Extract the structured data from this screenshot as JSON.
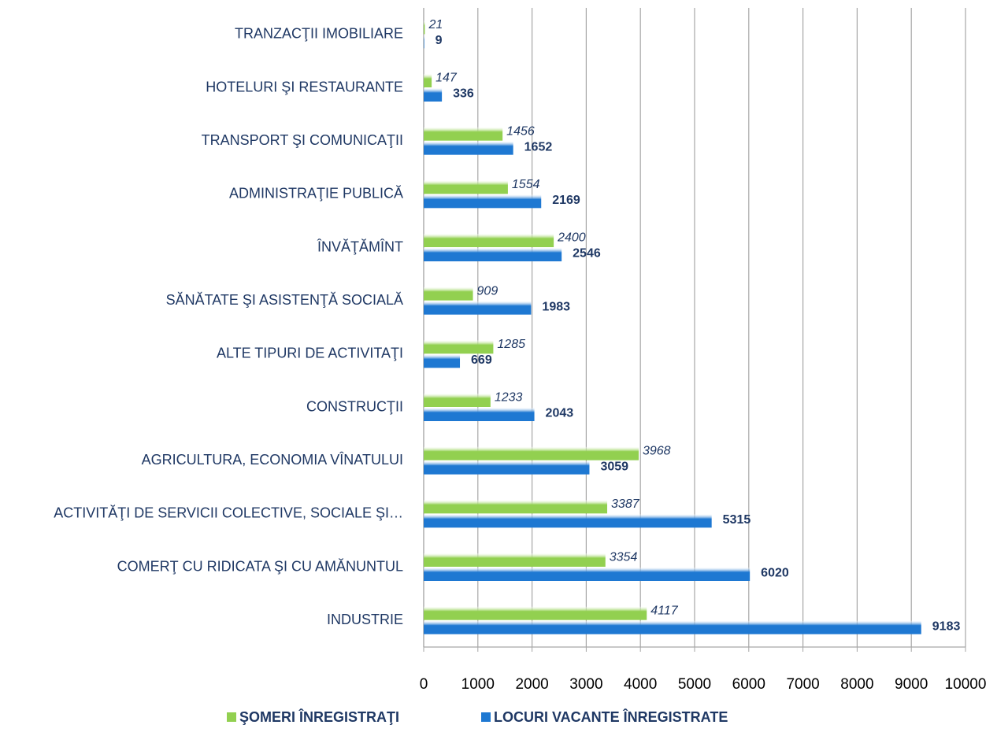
{
  "chart_data": {
    "type": "bar",
    "orientation": "horizontal",
    "categories": [
      "TRANZACŢII IMOBILIARE",
      "HOTELURI ŞI RESTAURANTE",
      "TRANSPORT ŞI COMUNICAŢII",
      "ADMINISTRAŢIE PUBLICĂ",
      "ÎNVĂŢĂMÎNT",
      "SĂNĂTATE ŞI ASISTENŢĂ SOCIALĂ",
      "ALTE TIPURI DE ACTIVITAŢI",
      "CONSTRUCŢII",
      "AGRICULTURA, ECONOMIA VÎNATULUI",
      "ACTIVITĂŢI DE SERVICII COLECTIVE, SOCIALE ŞI…",
      "COMERŢ CU RIDICATA ŞI CU AMĂNUNTUL",
      "INDUSTRIE"
    ],
    "series": [
      {
        "name": "ŞOMERI ÎNREGISTRAŢI",
        "color": "#92d050",
        "values": [
          21,
          147,
          1456,
          1554,
          2400,
          909,
          1285,
          1233,
          3968,
          3387,
          3354,
          4117
        ]
      },
      {
        "name": "LOCURI VACANTE ÎNREGISTRATE",
        "color": "#1e78d2",
        "values": [
          9,
          336,
          1652,
          2169,
          2546,
          1983,
          669,
          2043,
          3059,
          5315,
          6020,
          9183
        ]
      }
    ],
    "xlim": [
      0,
      10000
    ],
    "xticks": [
      0,
      1000,
      2000,
      3000,
      4000,
      5000,
      6000,
      7000,
      8000,
      9000,
      10000
    ],
    "grid": true,
    "legend": "bottom"
  }
}
